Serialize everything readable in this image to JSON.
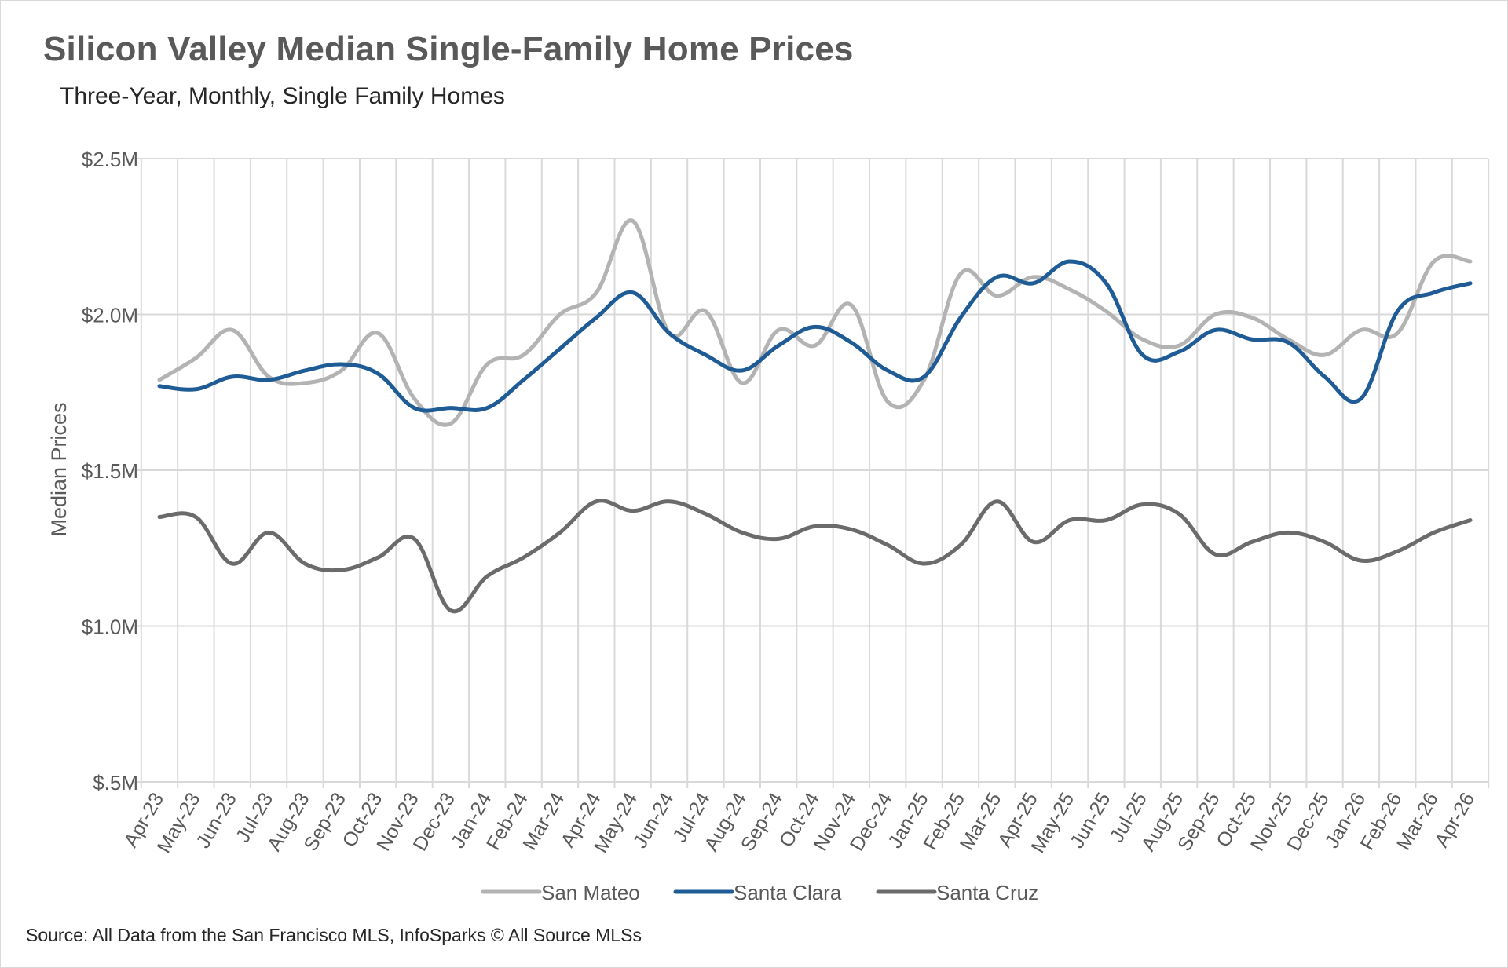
{
  "chart_data": {
    "type": "line",
    "title": "Silicon Valley Median Single-Family Home Prices",
    "subtitle": "Three-Year, Monthly, Single Family Homes",
    "xlabel": "",
    "ylabel": "Median Prices",
    "ylim": [
      500000,
      2500000
    ],
    "yticks": [
      500000,
      1000000,
      1500000,
      2000000,
      2500000
    ],
    "ytick_labels": [
      "$.5M",
      "$1.0M",
      "$1.5M",
      "$2.0M",
      "$2.5M"
    ],
    "grid": "vertical and horizontal",
    "legend_position": "bottom",
    "categories": [
      "Apr-23",
      "May-23",
      "Jun-23",
      "Jul-23",
      "Aug-23",
      "Sep-23",
      "Oct-23",
      "Nov-23",
      "Dec-23",
      "Jan-24",
      "Feb-24",
      "Mar-24",
      "Apr-24",
      "May-24",
      "Jun-24",
      "Jul-24",
      "Aug-24",
      "Sep-24",
      "Oct-24",
      "Nov-24",
      "Dec-24",
      "Jan-25",
      "Feb-25",
      "Mar-25",
      "Apr-25",
      "May-25",
      "Jun-25",
      "Jul-25",
      "Aug-25",
      "Sep-25",
      "Oct-25",
      "Nov-25",
      "Dec-25",
      "Jan-26",
      "Feb-26",
      "Mar-26",
      "Apr-26"
    ],
    "series": [
      {
        "name": "San Mateo",
        "color": "#b3b3b3",
        "values": [
          1790000,
          1860000,
          1950000,
          1800000,
          1780000,
          1820000,
          1940000,
          1730000,
          1650000,
          1840000,
          1870000,
          2000000,
          2070000,
          2300000,
          1940000,
          2010000,
          1780000,
          1950000,
          1900000,
          2030000,
          1720000,
          1790000,
          2130000,
          2060000,
          2120000,
          2080000,
          2010000,
          1920000,
          1900000,
          2000000,
          1990000,
          1920000,
          1870000,
          1950000,
          1940000,
          2170000,
          2170000
        ]
      },
      {
        "name": "Santa Clara",
        "color": "#1f5c96",
        "values": [
          1770000,
          1760000,
          1800000,
          1790000,
          1820000,
          1840000,
          1810000,
          1700000,
          1700000,
          1700000,
          1790000,
          1890000,
          1990000,
          2070000,
          1940000,
          1870000,
          1820000,
          1900000,
          1960000,
          1910000,
          1820000,
          1800000,
          1990000,
          2120000,
          2100000,
          2170000,
          2100000,
          1870000,
          1880000,
          1950000,
          1920000,
          1910000,
          1800000,
          1730000,
          2010000,
          2070000,
          2100000
        ]
      },
      {
        "name": "Santa Cruz",
        "color": "#6b6b6b",
        "values": [
          1350000,
          1350000,
          1200000,
          1300000,
          1200000,
          1180000,
          1220000,
          1280000,
          1050000,
          1160000,
          1220000,
          1300000,
          1400000,
          1370000,
          1400000,
          1360000,
          1300000,
          1280000,
          1320000,
          1310000,
          1260000,
          1200000,
          1260000,
          1400000,
          1270000,
          1340000,
          1340000,
          1390000,
          1360000,
          1230000,
          1270000,
          1300000,
          1270000,
          1210000,
          1240000,
          1300000,
          1340000
        ]
      }
    ],
    "source": "Source: All Data from the San Francisco MLS, InfoSparks © All Source MLSs"
  }
}
